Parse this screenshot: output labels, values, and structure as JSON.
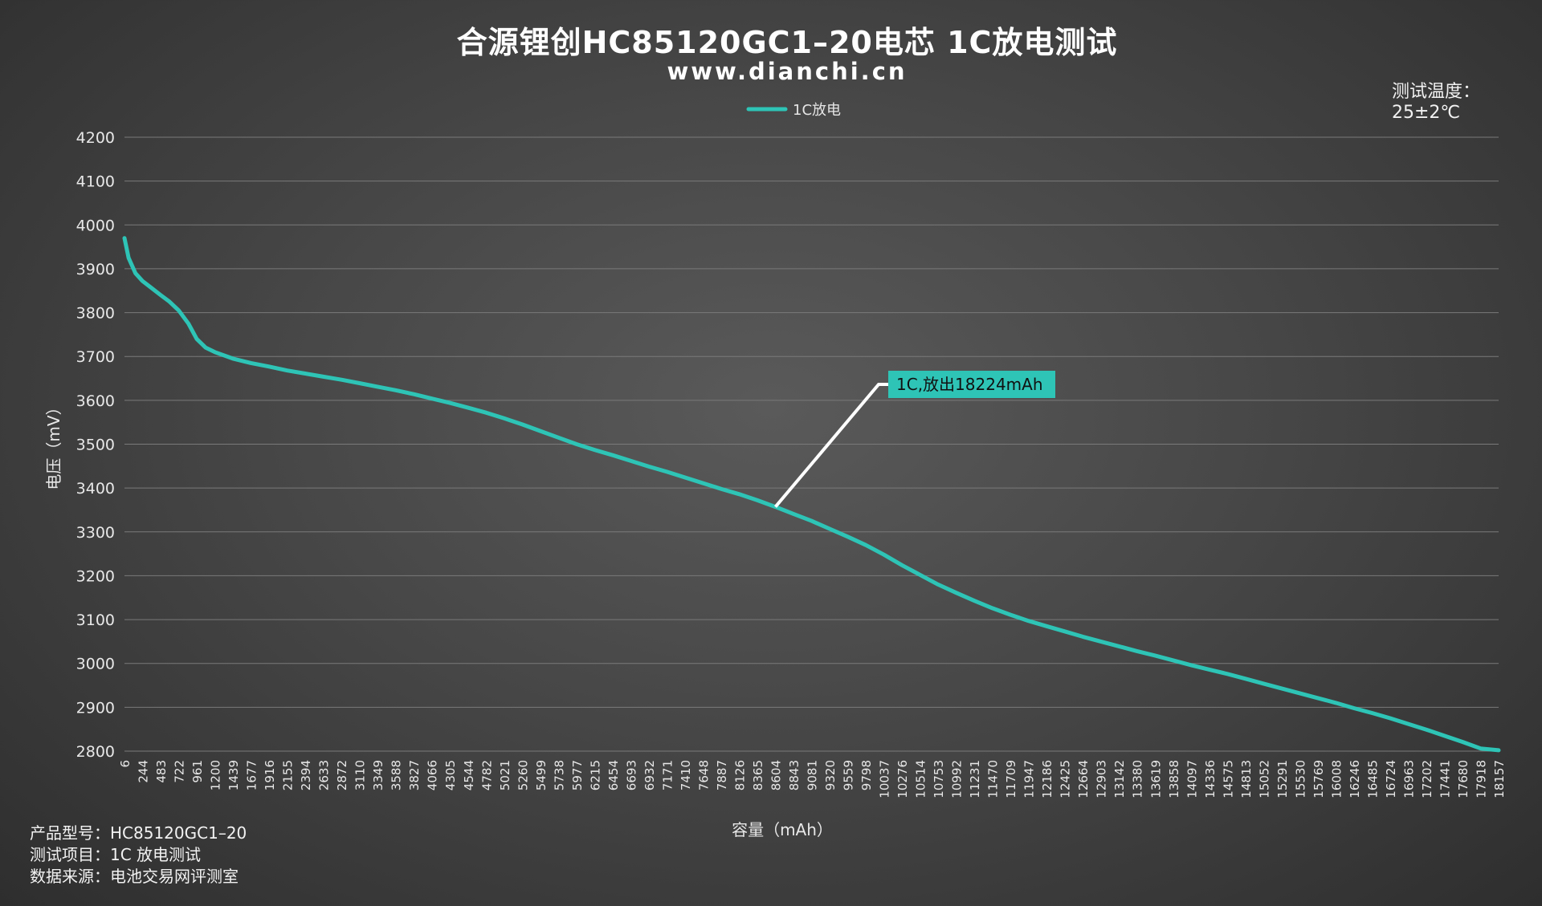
{
  "header": {
    "title": "合源锂创HC85120GC1–20电芯 1C放电测试",
    "subtitle": "www.dianchi.cn"
  },
  "temperature": {
    "label": "测试温度：",
    "value": "25±2℃"
  },
  "footer": {
    "line1": "产品型号：HC85120GC1–20",
    "line2": "测试项目：1C 放电测试",
    "line3": "数据来源：电池交易网评测室"
  },
  "colors": {
    "series": "#2ec4b6",
    "grid": "#7a7a7a",
    "callout_bg": "#2ec4b6"
  },
  "chart_data": {
    "type": "line",
    "title": "合源锂创HC85120GC1–20电芯 1C放电测试",
    "xlabel": "容量（mAh）",
    "ylabel": "电压（mV）",
    "ylim": [
      2800,
      4200
    ],
    "y_ticks": [
      4200,
      4100,
      4000,
      3900,
      3800,
      3700,
      3600,
      3500,
      3400,
      3300,
      3200,
      3100,
      3000,
      2900,
      2800
    ],
    "x_ticks": [
      6,
      244,
      483,
      722,
      961,
      1200,
      1439,
      1677,
      1916,
      2155,
      2394,
      2633,
      2872,
      3110,
      3349,
      3588,
      3827,
      4066,
      4305,
      4544,
      4782,
      5021,
      5260,
      5499,
      5738,
      5977,
      6215,
      6454,
      6693,
      6932,
      7171,
      7410,
      7648,
      7887,
      8126,
      8365,
      8604,
      8843,
      9081,
      9320,
      9559,
      9798,
      10037,
      10276,
      10514,
      10753,
      10992,
      11231,
      11470,
      11709,
      11947,
      12186,
      12425,
      12664,
      12903,
      13142,
      13380,
      13619,
      13858,
      14097,
      14336,
      14575,
      14813,
      15052,
      15291,
      15530,
      15769,
      16008,
      16246,
      16485,
      16724,
      16963,
      17202,
      17441,
      17680,
      17918,
      18157
    ],
    "grid": true,
    "legend_position": "top-center",
    "series": [
      {
        "name": "1C放电",
        "points": [
          [
            6,
            3970
          ],
          [
            60,
            3925
          ],
          [
            150,
            3890
          ],
          [
            244,
            3872
          ],
          [
            350,
            3858
          ],
          [
            483,
            3840
          ],
          [
            600,
            3825
          ],
          [
            722,
            3805
          ],
          [
            850,
            3775
          ],
          [
            961,
            3740
          ],
          [
            1080,
            3720
          ],
          [
            1200,
            3710
          ],
          [
            1439,
            3695
          ],
          [
            1677,
            3685
          ],
          [
            1916,
            3677
          ],
          [
            2155,
            3668
          ],
          [
            2394,
            3661
          ],
          [
            2633,
            3654
          ],
          [
            2872,
            3647
          ],
          [
            3110,
            3639
          ],
          [
            3349,
            3631
          ],
          [
            3588,
            3623
          ],
          [
            3827,
            3614
          ],
          [
            4066,
            3604
          ],
          [
            4305,
            3594
          ],
          [
            4544,
            3583
          ],
          [
            4782,
            3572
          ],
          [
            5021,
            3559
          ],
          [
            5260,
            3545
          ],
          [
            5499,
            3530
          ],
          [
            5738,
            3515
          ],
          [
            5977,
            3500
          ],
          [
            6215,
            3487
          ],
          [
            6454,
            3475
          ],
          [
            6693,
            3462
          ],
          [
            6932,
            3449
          ],
          [
            7171,
            3437
          ],
          [
            7410,
            3424
          ],
          [
            7648,
            3411
          ],
          [
            7887,
            3398
          ],
          [
            8126,
            3386
          ],
          [
            8365,
            3372
          ],
          [
            8604,
            3357
          ],
          [
            8843,
            3341
          ],
          [
            9081,
            3325
          ],
          [
            9320,
            3307
          ],
          [
            9559,
            3289
          ],
          [
            9798,
            3270
          ],
          [
            10037,
            3248
          ],
          [
            10276,
            3224
          ],
          [
            10514,
            3202
          ],
          [
            10753,
            3180
          ],
          [
            10992,
            3161
          ],
          [
            11231,
            3143
          ],
          [
            11470,
            3126
          ],
          [
            11709,
            3111
          ],
          [
            11947,
            3097
          ],
          [
            12186,
            3085
          ],
          [
            12425,
            3073
          ],
          [
            12664,
            3061
          ],
          [
            12903,
            3050
          ],
          [
            13142,
            3039
          ],
          [
            13380,
            3028
          ],
          [
            13619,
            3018
          ],
          [
            13858,
            3007
          ],
          [
            14097,
            2996
          ],
          [
            14336,
            2986
          ],
          [
            14575,
            2976
          ],
          [
            14813,
            2965
          ],
          [
            15052,
            2954
          ],
          [
            15291,
            2943
          ],
          [
            15530,
            2932
          ],
          [
            15769,
            2921
          ],
          [
            16008,
            2910
          ],
          [
            16246,
            2898
          ],
          [
            16485,
            2887
          ],
          [
            16724,
            2875
          ],
          [
            16963,
            2862
          ],
          [
            17202,
            2849
          ],
          [
            17441,
            2835
          ],
          [
            17680,
            2821
          ],
          [
            17918,
            2806
          ],
          [
            18224,
            2802
          ]
        ]
      }
    ],
    "annotation": {
      "text": "1C,放出18224mAh",
      "anchor_x": 8604,
      "anchor_y": 3357
    }
  }
}
